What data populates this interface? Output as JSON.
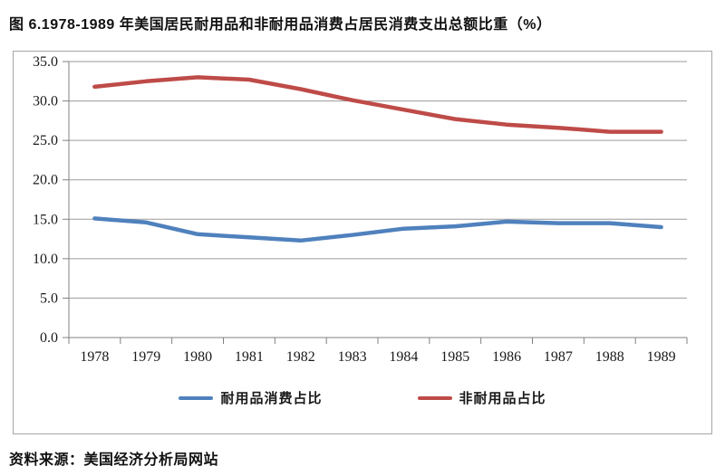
{
  "page": {
    "title": "图 6.1978-1989 年美国居民耐用品和非耐用品消费占居民消费支出总额比重（%）",
    "source": "资料来源：美国经济分析局网站"
  },
  "chart_data": {
    "type": "line",
    "title": "图 6.1978-1989 年美国居民耐用品和非耐用品消费占居民消费支出总额比重（%）",
    "categories": [
      "1978",
      "1979",
      "1980",
      "1981",
      "1982",
      "1983",
      "1984",
      "1985",
      "1986",
      "1987",
      "1988",
      "1989"
    ],
    "series": [
      {
        "key": "durables",
        "name": "耐用品消费占比",
        "color": "#4F81BD",
        "values": [
          15.1,
          14.6,
          13.1,
          12.7,
          12.3,
          13.0,
          13.8,
          14.1,
          14.7,
          14.5,
          14.5,
          14.0
        ]
      },
      {
        "key": "nondurables",
        "name": "非耐用品占比",
        "color": "#BE4B48",
        "values": [
          31.8,
          32.5,
          33.0,
          32.7,
          31.5,
          30.1,
          28.9,
          27.7,
          27.0,
          26.6,
          26.1,
          26.1
        ]
      }
    ],
    "ylim": [
      0,
      35
    ],
    "ytick_step": 5,
    "ytick_labels": [
      "0.0",
      "5.0",
      "10.0",
      "15.0",
      "20.0",
      "25.0",
      "30.0",
      "35.0"
    ],
    "grid": true,
    "legend_position": "bottom",
    "axis_color": "#808080",
    "grid_color": "#9b9b9b",
    "tick_label_color": "#1a1a1a"
  }
}
